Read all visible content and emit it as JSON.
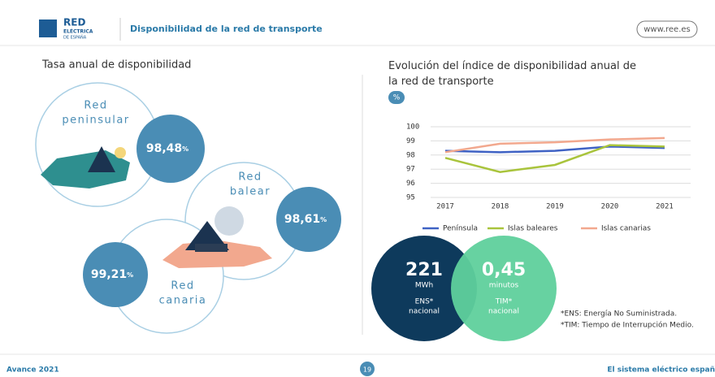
{
  "header": {
    "brand": "RED",
    "brand_sub": "ELÉCTRICA",
    "brand_sub2": "DE ESPAÑA",
    "title": "Disponibilidad de la red de transporte",
    "url": "www.ree.es"
  },
  "left": {
    "title": "Tasa anual de disponibilidad",
    "items": [
      {
        "label": [
          "Red",
          "peninsular"
        ],
        "value": "98,48",
        "unit": "%"
      },
      {
        "label": [
          "Red",
          "balear"
        ],
        "value": "98,61",
        "unit": "%"
      },
      {
        "label": [
          "Red",
          "canaria"
        ],
        "value": "99,21",
        "unit": "%"
      }
    ]
  },
  "chart_data": {
    "type": "line",
    "title": "Evolución del índice de disponibilidad anual de la red de transporte",
    "y_label": "%",
    "categories": [
      "2017",
      "2018",
      "2019",
      "2020",
      "2021"
    ],
    "series": [
      {
        "name": "Península",
        "color": "#3f62c4",
        "values": [
          98.3,
          98.2,
          98.3,
          98.6,
          98.5
        ]
      },
      {
        "name": "Islas baleares",
        "color": "#a9c43c",
        "values": [
          97.8,
          96.8,
          97.3,
          98.7,
          98.6
        ]
      },
      {
        "name": "Islas canarias",
        "color": "#f2a88e",
        "values": [
          98.2,
          98.8,
          98.9,
          99.1,
          99.2
        ]
      }
    ],
    "ylim": [
      95,
      100
    ],
    "yticks": [
      95,
      96,
      97,
      98,
      99,
      100
    ],
    "grid": true,
    "legend": "bottom"
  },
  "kpis": [
    {
      "value": "221",
      "unit": "MWh",
      "name": "ENS*",
      "scope": "nacional"
    },
    {
      "value": "0,45",
      "unit": "minutos",
      "name": "TIM*",
      "scope": "nacional"
    }
  ],
  "footnotes": [
    "*ENS: Energía No Suministrada.",
    "*TIM: Tiempo de Interrupción Medio."
  ],
  "footer": {
    "left": "Avance 2021",
    "page": "19",
    "right": "El sistema eléctrico españ"
  }
}
